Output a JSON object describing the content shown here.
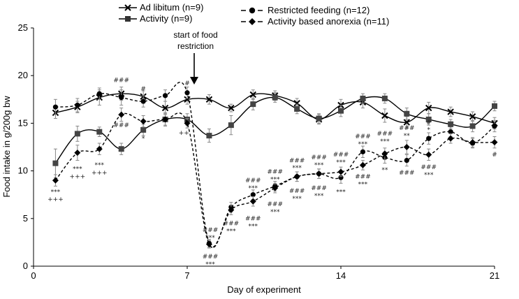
{
  "chart_data": {
    "type": "line",
    "xlabel": "Day of experiment",
    "ylabel": "Food  intake in g/200g bw",
    "xlim": [
      0,
      21
    ],
    "ylim": [
      0,
      25
    ],
    "xticks": [
      0,
      7,
      14,
      21
    ],
    "yticks": [
      0,
      5,
      10,
      15,
      20,
      25
    ],
    "annotation": {
      "text_line1": "start of food",
      "text_line2": "restriction",
      "x": 7
    },
    "series": [
      {
        "name": "Ad libitum (n=9)",
        "key": "adlib",
        "marker": "x",
        "dash": false,
        "x": [
          1,
          2,
          3,
          4,
          5,
          6,
          7,
          8,
          9,
          10,
          11,
          12,
          13,
          14,
          15,
          16,
          17,
          18,
          19,
          20,
          21
        ],
        "values": [
          16.1,
          16.7,
          17.7,
          18.1,
          17.8,
          16.6,
          17.5,
          17.5,
          16.6,
          18.0,
          17.9,
          17.1,
          15.4,
          16.9,
          17.2,
          15.8,
          15.1,
          16.6,
          16.2,
          15.7,
          15.0
        ],
        "errors": [
          0.6,
          0.6,
          0.8,
          0.7,
          0.6,
          0.7,
          0.5,
          0.5,
          0.4,
          0.5,
          0.5,
          0.5,
          0.5,
          0.6,
          0.6,
          0.7,
          0.6,
          0.6,
          0.5,
          0.5,
          0.6
        ]
      },
      {
        "name": "Restricted feeding (n=12)",
        "key": "rf",
        "marker": "circle",
        "dash": true,
        "x": [
          1,
          2,
          3,
          4,
          5,
          6,
          7,
          8,
          9,
          10,
          11,
          12,
          13,
          14,
          15,
          16,
          17,
          18,
          19,
          20,
          21
        ],
        "values": [
          16.7,
          16.9,
          18.1,
          17.7,
          17.3,
          17.9,
          18.2,
          2.4,
          6.2,
          7.5,
          8.4,
          9.4,
          9.7,
          9.3,
          12.0,
          11.4,
          11.1,
          13.4,
          14.1,
          12.9,
          14.7
        ],
        "errors": [
          0.8,
          0.7,
          0.6,
          0.8,
          0.6,
          0.6,
          0.6,
          0.4,
          0.5,
          0.5,
          0.5,
          0.5,
          0.5,
          0.6,
          0.6,
          0.6,
          0.6,
          0.6,
          0.5,
          0.5,
          0.6
        ]
      },
      {
        "name": "Activity (n=9)",
        "key": "act",
        "marker": "square",
        "dash": false,
        "x": [
          1,
          2,
          3,
          4,
          5,
          6,
          7,
          8,
          9,
          10,
          11,
          12,
          13,
          14,
          15,
          16,
          17,
          18,
          19,
          20,
          21
        ],
        "values": [
          10.8,
          13.9,
          14.1,
          12.3,
          14.3,
          15.4,
          15.4,
          13.7,
          14.8,
          17.0,
          17.7,
          16.5,
          15.5,
          16.3,
          17.6,
          17.6,
          16.0,
          15.4,
          14.9,
          14.7,
          16.8
        ],
        "errors": [
          1.5,
          0.8,
          0.5,
          0.6,
          0.6,
          0.7,
          0.6,
          0.7,
          1.0,
          0.6,
          0.5,
          0.5,
          0.5,
          0.6,
          0.5,
          0.5,
          0.6,
          0.6,
          0.5,
          0.6,
          0.5
        ]
      },
      {
        "name": "Activity based anorexia (n=11)",
        "key": "aba",
        "marker": "diamond",
        "dash": true,
        "x": [
          1,
          2,
          3,
          4,
          5,
          6,
          7,
          8,
          9,
          10,
          11,
          12,
          13,
          14,
          15,
          16,
          17,
          18,
          19,
          20,
          21
        ],
        "values": [
          9.0,
          11.9,
          12.3,
          15.9,
          15.2,
          15.4,
          15.0,
          2.3,
          5.9,
          6.8,
          8.2,
          9.4,
          9.7,
          9.9,
          10.6,
          11.8,
          12.5,
          11.7,
          13.4,
          13.0,
          13.0
        ],
        "errors": [
          0.6,
          0.8,
          0.6,
          0.7,
          0.6,
          0.6,
          0.5,
          0.4,
          0.5,
          0.5,
          0.5,
          0.5,
          0.5,
          0.5,
          0.5,
          0.6,
          0.7,
          0.6,
          0.5,
          0.5,
          0.6
        ]
      }
    ],
    "significance_marks": [
      {
        "x": 1,
        "y": 7.6,
        "text": "***"
      },
      {
        "x": 1,
        "y": 6.8,
        "text": "+++"
      },
      {
        "x": 2,
        "y": 10.0,
        "text": "***"
      },
      {
        "x": 2,
        "y": 9.2,
        "text": "+++"
      },
      {
        "x": 3,
        "y": 10.4,
        "text": "***"
      },
      {
        "x": 3,
        "y": 9.6,
        "text": "+++"
      },
      {
        "x": 4,
        "y": 19.3,
        "text": "###"
      },
      {
        "x": 4,
        "y": 14.6,
        "text": "###"
      },
      {
        "x": 5,
        "y": 18.4,
        "text": "#"
      },
      {
        "x": 5,
        "y": 13.2,
        "text": "*"
      },
      {
        "x": 7,
        "y": 19.0,
        "text": "#"
      },
      {
        "x": 6.85,
        "y": 13.8,
        "text": "++"
      },
      {
        "x": 8.05,
        "y": 3.6,
        "text": "###"
      },
      {
        "x": 8.05,
        "y": 2.8,
        "text": "***"
      },
      {
        "x": 8.05,
        "y": 0.8,
        "text": "###"
      },
      {
        "x": 8.05,
        "y": 0.0,
        "text": "***"
      },
      {
        "x": 9,
        "y": 4.3,
        "text": "###"
      },
      {
        "x": 9,
        "y": 3.5,
        "text": "***"
      },
      {
        "x": 10,
        "y": 8.8,
        "text": "###"
      },
      {
        "x": 10,
        "y": 8.0,
        "text": "***"
      },
      {
        "x": 10,
        "y": 4.8,
        "text": "###"
      },
      {
        "x": 10,
        "y": 4.0,
        "text": "***"
      },
      {
        "x": 11,
        "y": 9.7,
        "text": "###"
      },
      {
        "x": 11,
        "y": 8.9,
        "text": "***"
      },
      {
        "x": 11,
        "y": 6.3,
        "text": "###"
      },
      {
        "x": 11,
        "y": 5.5,
        "text": "***"
      },
      {
        "x": 12,
        "y": 10.9,
        "text": "###"
      },
      {
        "x": 12,
        "y": 10.1,
        "text": "***"
      },
      {
        "x": 12,
        "y": 7.7,
        "text": "###"
      },
      {
        "x": 12,
        "y": 6.9,
        "text": "***"
      },
      {
        "x": 13,
        "y": 11.2,
        "text": "###"
      },
      {
        "x": 13,
        "y": 10.4,
        "text": "***"
      },
      {
        "x": 13,
        "y": 8.0,
        "text": "###"
      },
      {
        "x": 13,
        "y": 7.2,
        "text": "***"
      },
      {
        "x": 14,
        "y": 11.5,
        "text": "###"
      },
      {
        "x": 14,
        "y": 10.7,
        "text": "***"
      },
      {
        "x": 14,
        "y": 7.6,
        "text": "***"
      },
      {
        "x": 15,
        "y": 13.4,
        "text": "###"
      },
      {
        "x": 15,
        "y": 12.6,
        "text": "***"
      },
      {
        "x": 15,
        "y": 9.2,
        "text": "###"
      },
      {
        "x": 15,
        "y": 8.4,
        "text": "***"
      },
      {
        "x": 16,
        "y": 13.7,
        "text": "###"
      },
      {
        "x": 16,
        "y": 12.9,
        "text": "***"
      },
      {
        "x": 16,
        "y": 9.9,
        "text": "**"
      },
      {
        "x": 17,
        "y": 14.3,
        "text": "###"
      },
      {
        "x": 17,
        "y": 13.5,
        "text": "**"
      },
      {
        "x": 17,
        "y": 9.6,
        "text": "###"
      },
      {
        "x": 18,
        "y": 14.9,
        "text": "#"
      },
      {
        "x": 18,
        "y": 14.1,
        "text": "*"
      },
      {
        "x": 18,
        "y": 10.2,
        "text": "###"
      },
      {
        "x": 18,
        "y": 9.4,
        "text": "***"
      },
      {
        "x": 21,
        "y": 11.5,
        "text": "#"
      }
    ]
  }
}
